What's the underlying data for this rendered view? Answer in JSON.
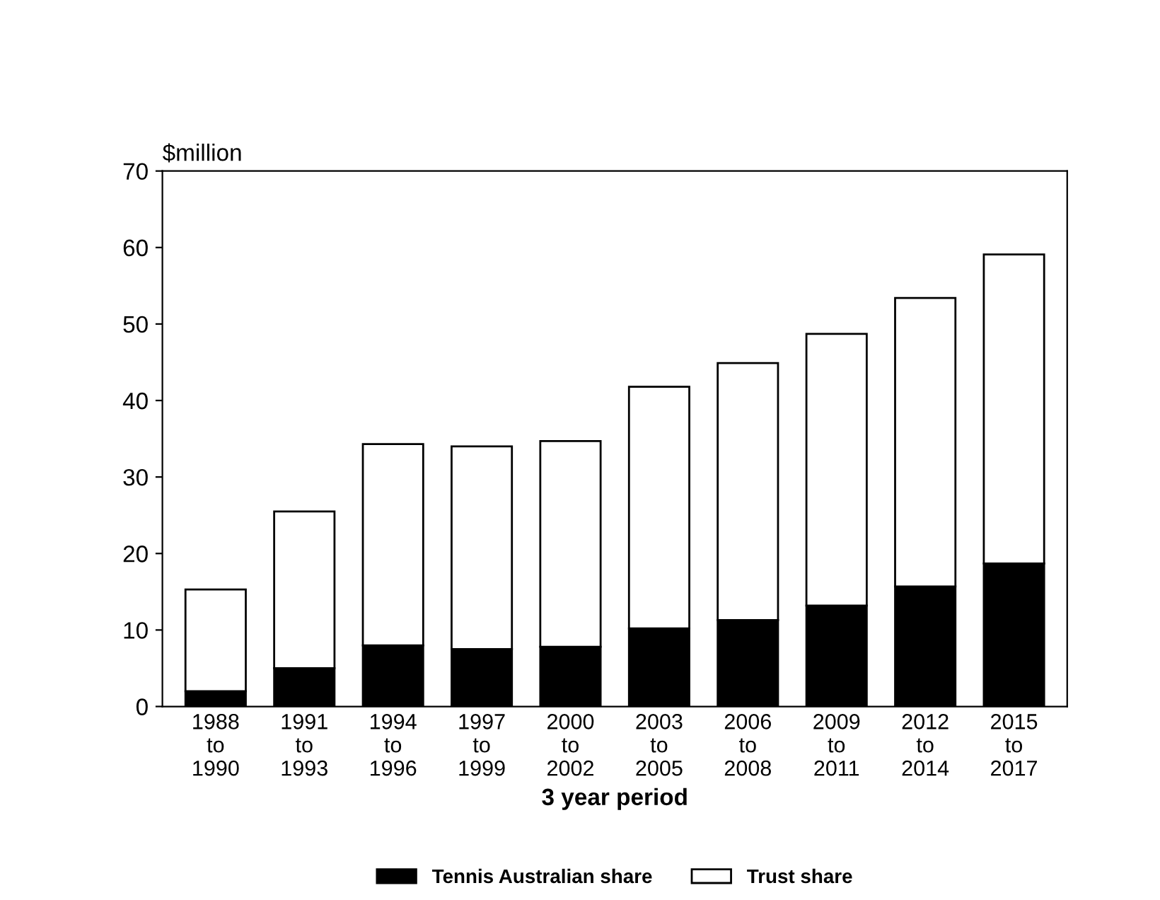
{
  "chart_data": {
    "type": "bar",
    "stacked": true,
    "ylabel": "$million",
    "xlabel": "3 year period",
    "categories": [
      "1988\nto\n1990",
      "1991\nto\n1993",
      "1994\nto\n1996",
      "1997\nto\n1999",
      "2000\nto\n2002",
      "2003\nto\n2005",
      "2006\nto\n2008",
      "2009\nto\n2011",
      "2012\nto\n2014",
      "2015\nto\n2017"
    ],
    "series": [
      {
        "name": "Tennis Australian share",
        "color": "#000000",
        "values": [
          2,
          5,
          8,
          7.5,
          7.8,
          10.2,
          11.3,
          13.2,
          15.7,
          18.7
        ]
      },
      {
        "name": "Trust share",
        "color": "#ffffff",
        "values": [
          13.3,
          20.5,
          26.3,
          26.5,
          26.9,
          31.6,
          33.6,
          35.5,
          37.7,
          40.4
        ]
      }
    ],
    "ylim": [
      0,
      70
    ],
    "yticks": [
      0,
      10,
      20,
      30,
      40,
      50,
      60,
      70
    ],
    "grid": false,
    "legend": "bottom"
  }
}
